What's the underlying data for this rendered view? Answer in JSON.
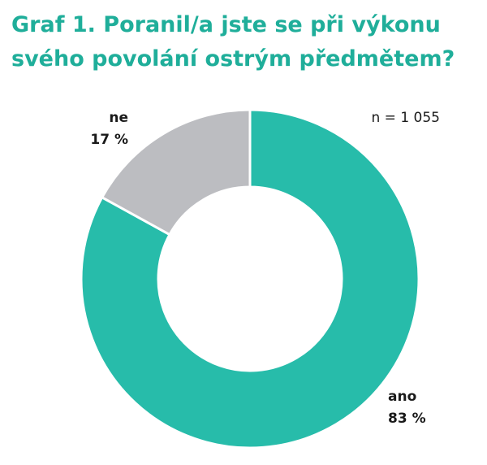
{
  "chart_data": {
    "type": "pie",
    "title": "Graf 1. Poranil/a jste se při výkonu svého povolání ostrým předmětem?",
    "annotation": "n = 1 055",
    "categories": [
      "ano",
      "ne"
    ],
    "values": [
      83,
      17
    ],
    "value_labels": [
      "83 %",
      "17 %"
    ],
    "colors": [
      "#27bcaa",
      "#bcbdc1"
    ]
  }
}
